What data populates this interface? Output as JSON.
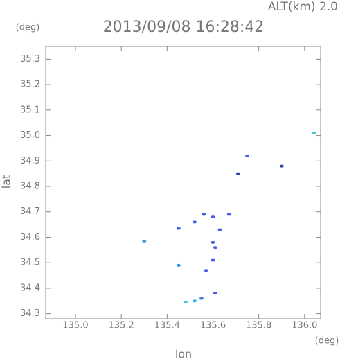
{
  "chart_data": {
    "type": "scatter",
    "title": "2013/09/08 16:28:42",
    "subtitle": "ALT(km) 2.0",
    "x_label": "lon",
    "y_label": "lat",
    "x_unit": "(deg)",
    "y_unit": "(deg)",
    "x": [
      136.04,
      135.75,
      135.9,
      135.71,
      135.3,
      135.45,
      135.45,
      135.52,
      135.56,
      135.6,
      135.67,
      135.63,
      135.6,
      135.61,
      135.6,
      135.57,
      135.61,
      135.55,
      135.48,
      135.52
    ],
    "values": [
      35.01,
      34.92,
      34.88,
      34.85,
      34.585,
      34.49,
      34.635,
      34.66,
      34.69,
      34.68,
      34.69,
      34.63,
      34.58,
      34.56,
      34.51,
      34.47,
      34.38,
      34.36,
      34.345,
      34.35
    ],
    "colors": [
      "#40c8e0",
      "#4a5ae8",
      "#3040b0",
      "#3040b0",
      "#3aa0d8",
      "#3a90d8",
      "#4a5ae8",
      "#4a5ae8",
      "#4a5ae8",
      "#4a5ae8",
      "#4a5ae8",
      "#4a5ae8",
      "#4a5ae8",
      "#4a5ae8",
      "#4a5ae8",
      "#4a5ae8",
      "#4a5ae8",
      "#3a80e0",
      "#40c0e8",
      "#40b0e8"
    ],
    "xlim": [
      134.87,
      136.07
    ],
    "ylim": [
      34.28,
      35.35
    ],
    "xticks": [
      {
        "value": 135,
        "label": "135.0"
      },
      135.2,
      135.4,
      135.6,
      135.8,
      {
        "value": 136,
        "label": "136.0"
      }
    ],
    "yticks": [
      34.3,
      34.4,
      34.5,
      34.6,
      34.7,
      34.8,
      34.9,
      {
        "value": 35,
        "label": "35.0"
      },
      35.1,
      35.2,
      35.3
    ],
    "grid": false
  }
}
